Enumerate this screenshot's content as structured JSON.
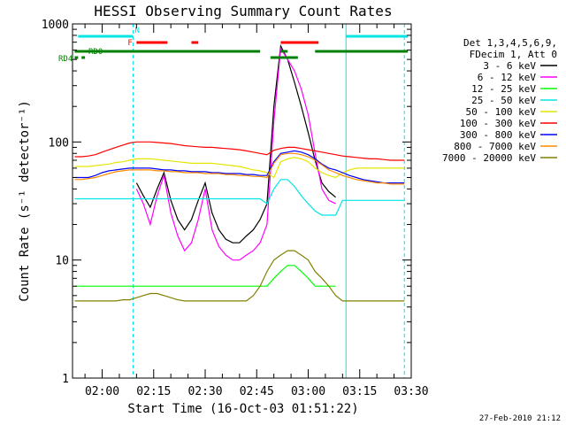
{
  "chart_data": {
    "type": "line",
    "title": "HESSI Observing Summary Count Rates",
    "xlabel": "Start Time (16-Oct-03 01:51:22)",
    "ylabel": "Count Rate (s⁻¹ detector⁻¹)",
    "y_scale": "log",
    "ylim": [
      1,
      1000
    ],
    "xlim": [
      "01:51:22",
      "03:30:00"
    ],
    "x_ticks": [
      "02:00",
      "02:15",
      "02:30",
      "02:45",
      "03:00",
      "03:15",
      "03:30"
    ],
    "y_ticks": [
      "1",
      "10",
      "100",
      "1000"
    ],
    "grid": false,
    "legend_position": "right",
    "legend_header": [
      "Det 1,3,4,5,6,9,",
      "FDecim 1, Att 0"
    ],
    "footer_date": "27-Feb-2010 21:12",
    "flags": [
      {
        "label": "N",
        "color": "#00e5e5",
        "segments": [
          [
            "01:53",
            "02:09"
          ],
          [
            "03:11",
            "03:29"
          ]
        ]
      },
      {
        "label": "F",
        "color": "#ff0000",
        "segments": [
          [
            "02:10",
            "02:19"
          ],
          [
            "02:26",
            "02:28"
          ],
          [
            "02:52",
            "03:03"
          ]
        ]
      },
      {
        "label": "RD0",
        "color": "#008000",
        "segments": [
          [
            "01:52",
            "02:46"
          ],
          [
            "02:52",
            "02:54"
          ],
          [
            "03:02",
            "03:29"
          ]
        ]
      },
      {
        "label": "RD4",
        "color": "#008000",
        "segments": [
          [
            "01:52",
            "01:53"
          ],
          [
            "01:54",
            "01:55"
          ],
          [
            "02:49",
            "02:57"
          ]
        ]
      }
    ],
    "vertical_markers": [
      {
        "time": "02:09",
        "color": "#00e5e5",
        "style": "dashed"
      },
      {
        "time": "03:11",
        "color": "#00e5e5",
        "style": "solid"
      },
      {
        "time": "03:28",
        "color": "#00e5e5",
        "style": "dashed"
      }
    ],
    "x": [
      "01:52",
      "01:54",
      "01:56",
      "01:58",
      "02:00",
      "02:02",
      "02:04",
      "02:06",
      "02:08",
      "02:10",
      "02:12",
      "02:14",
      "02:16",
      "02:18",
      "02:20",
      "02:22",
      "02:24",
      "02:26",
      "02:28",
      "02:30",
      "02:32",
      "02:34",
      "02:36",
      "02:38",
      "02:40",
      "02:42",
      "02:44",
      "02:46",
      "02:48",
      "02:50",
      "02:52",
      "02:54",
      "02:56",
      "02:58",
      "03:00",
      "03:02",
      "03:04",
      "03:06",
      "03:08",
      "03:10",
      "03:12",
      "03:14",
      "03:16",
      "03:18",
      "03:20",
      "03:22",
      "03:24",
      "03:26",
      "03:28"
    ],
    "series": [
      {
        "name": "3 - 6 keV",
        "color": "#000000",
        "values": [
          null,
          null,
          null,
          null,
          null,
          null,
          null,
          null,
          null,
          45,
          35,
          28,
          40,
          55,
          32,
          22,
          18,
          22,
          32,
          45,
          25,
          18,
          15,
          14,
          14,
          16,
          18,
          22,
          30,
          200,
          650,
          500,
          320,
          200,
          120,
          70,
          45,
          38,
          34,
          null,
          null,
          null,
          null,
          null,
          null,
          null,
          null,
          null,
          null
        ]
      },
      {
        "name": "6 - 12 keV",
        "color": "#ff00ff",
        "values": [
          null,
          null,
          null,
          null,
          null,
          null,
          null,
          null,
          null,
          40,
          30,
          20,
          35,
          52,
          25,
          16,
          12,
          14,
          22,
          40,
          18,
          13,
          11,
          10,
          10,
          11,
          12,
          14,
          20,
          150,
          620,
          500,
          400,
          280,
          170,
          80,
          40,
          32,
          30,
          null,
          null,
          null,
          null,
          null,
          null,
          null,
          null,
          null,
          null
        ]
      },
      {
        "name": "12 - 25 keV",
        "color": "#00ff00",
        "values": [
          6,
          6,
          6,
          6,
          6,
          6,
          6,
          6,
          6,
          6,
          6,
          6,
          6,
          6,
          6,
          6,
          6,
          6,
          6,
          6,
          6,
          6,
          6,
          6,
          6,
          6,
          6,
          6,
          6,
          7,
          8,
          9,
          9,
          8,
          7,
          6,
          6,
          6,
          6,
          null,
          null,
          null,
          null,
          null,
          null,
          null,
          null,
          null,
          null
        ]
      },
      {
        "name": "25 - 50 keV",
        "color": "#00e5e5",
        "values": [
          33,
          33,
          33,
          33,
          33,
          33,
          33,
          33,
          33,
          33,
          33,
          33,
          33,
          33,
          33,
          33,
          33,
          33,
          33,
          33,
          33,
          33,
          33,
          33,
          33,
          33,
          33,
          33,
          30,
          40,
          48,
          48,
          42,
          35,
          30,
          26,
          24,
          24,
          24,
          32,
          32,
          32,
          32,
          32,
          32,
          32,
          32,
          32,
          32
        ]
      },
      {
        "name": "50 - 100 keV",
        "color": "#e5e500",
        "values": [
          62,
          62,
          62,
          63,
          64,
          65,
          67,
          68,
          70,
          72,
          72,
          72,
          71,
          70,
          69,
          68,
          67,
          66,
          66,
          66,
          66,
          65,
          64,
          63,
          62,
          60,
          58,
          57,
          55,
          50,
          68,
          72,
          74,
          72,
          68,
          60,
          55,
          52,
          50,
          55,
          58,
          60,
          60,
          60,
          60,
          60,
          60,
          60,
          60
        ]
      },
      {
        "name": "100 - 300 keV",
        "color": "#ff0000",
        "values": [
          75,
          75,
          76,
          78,
          82,
          86,
          90,
          94,
          98,
          100,
          100,
          100,
          99,
          98,
          97,
          95,
          93,
          92,
          91,
          90,
          90,
          89,
          88,
          87,
          86,
          84,
          82,
          80,
          78,
          85,
          88,
          90,
          90,
          88,
          86,
          84,
          82,
          80,
          78,
          76,
          75,
          74,
          73,
          72,
          72,
          71,
          70,
          70,
          70
        ]
      },
      {
        "name": "300 - 800 keV",
        "color": "#0000ff",
        "values": [
          50,
          50,
          50,
          52,
          55,
          57,
          58,
          59,
          60,
          60,
          60,
          60,
          59,
          58,
          58,
          57,
          57,
          56,
          56,
          56,
          55,
          55,
          54,
          54,
          54,
          53,
          53,
          52,
          52,
          68,
          80,
          82,
          84,
          82,
          78,
          72,
          65,
          60,
          58,
          55,
          52,
          50,
          48,
          47,
          46,
          45,
          45,
          45,
          45
        ]
      },
      {
        "name": "800 - 7000 keV",
        "color": "#ff8c00",
        "values": [
          48,
          48,
          49,
          50,
          52,
          54,
          56,
          57,
          58,
          58,
          58,
          58,
          57,
          57,
          56,
          56,
          55,
          55,
          55,
          54,
          54,
          54,
          53,
          53,
          52,
          52,
          51,
          51,
          50,
          66,
          78,
          80,
          80,
          78,
          75,
          70,
          64,
          58,
          55,
          52,
          50,
          48,
          47,
          46,
          45,
          45,
          44,
          44,
          44
        ]
      },
      {
        "name": "7000 - 20000 keV",
        "color": "#808000",
        "values": [
          4.5,
          4.5,
          4.5,
          4.5,
          4.5,
          4.5,
          4.5,
          4.6,
          4.6,
          4.8,
          5.0,
          5.2,
          5.2,
          5.0,
          4.8,
          4.6,
          4.5,
          4.5,
          4.5,
          4.5,
          4.5,
          4.5,
          4.5,
          4.5,
          4.5,
          4.5,
          5.0,
          6,
          8,
          10,
          11,
          12,
          12,
          11,
          10,
          8,
          7,
          6,
          5,
          4.5,
          4.5,
          4.5,
          4.5,
          4.5,
          4.5,
          4.5,
          4.5,
          4.5,
          4.5
        ]
      }
    ]
  }
}
